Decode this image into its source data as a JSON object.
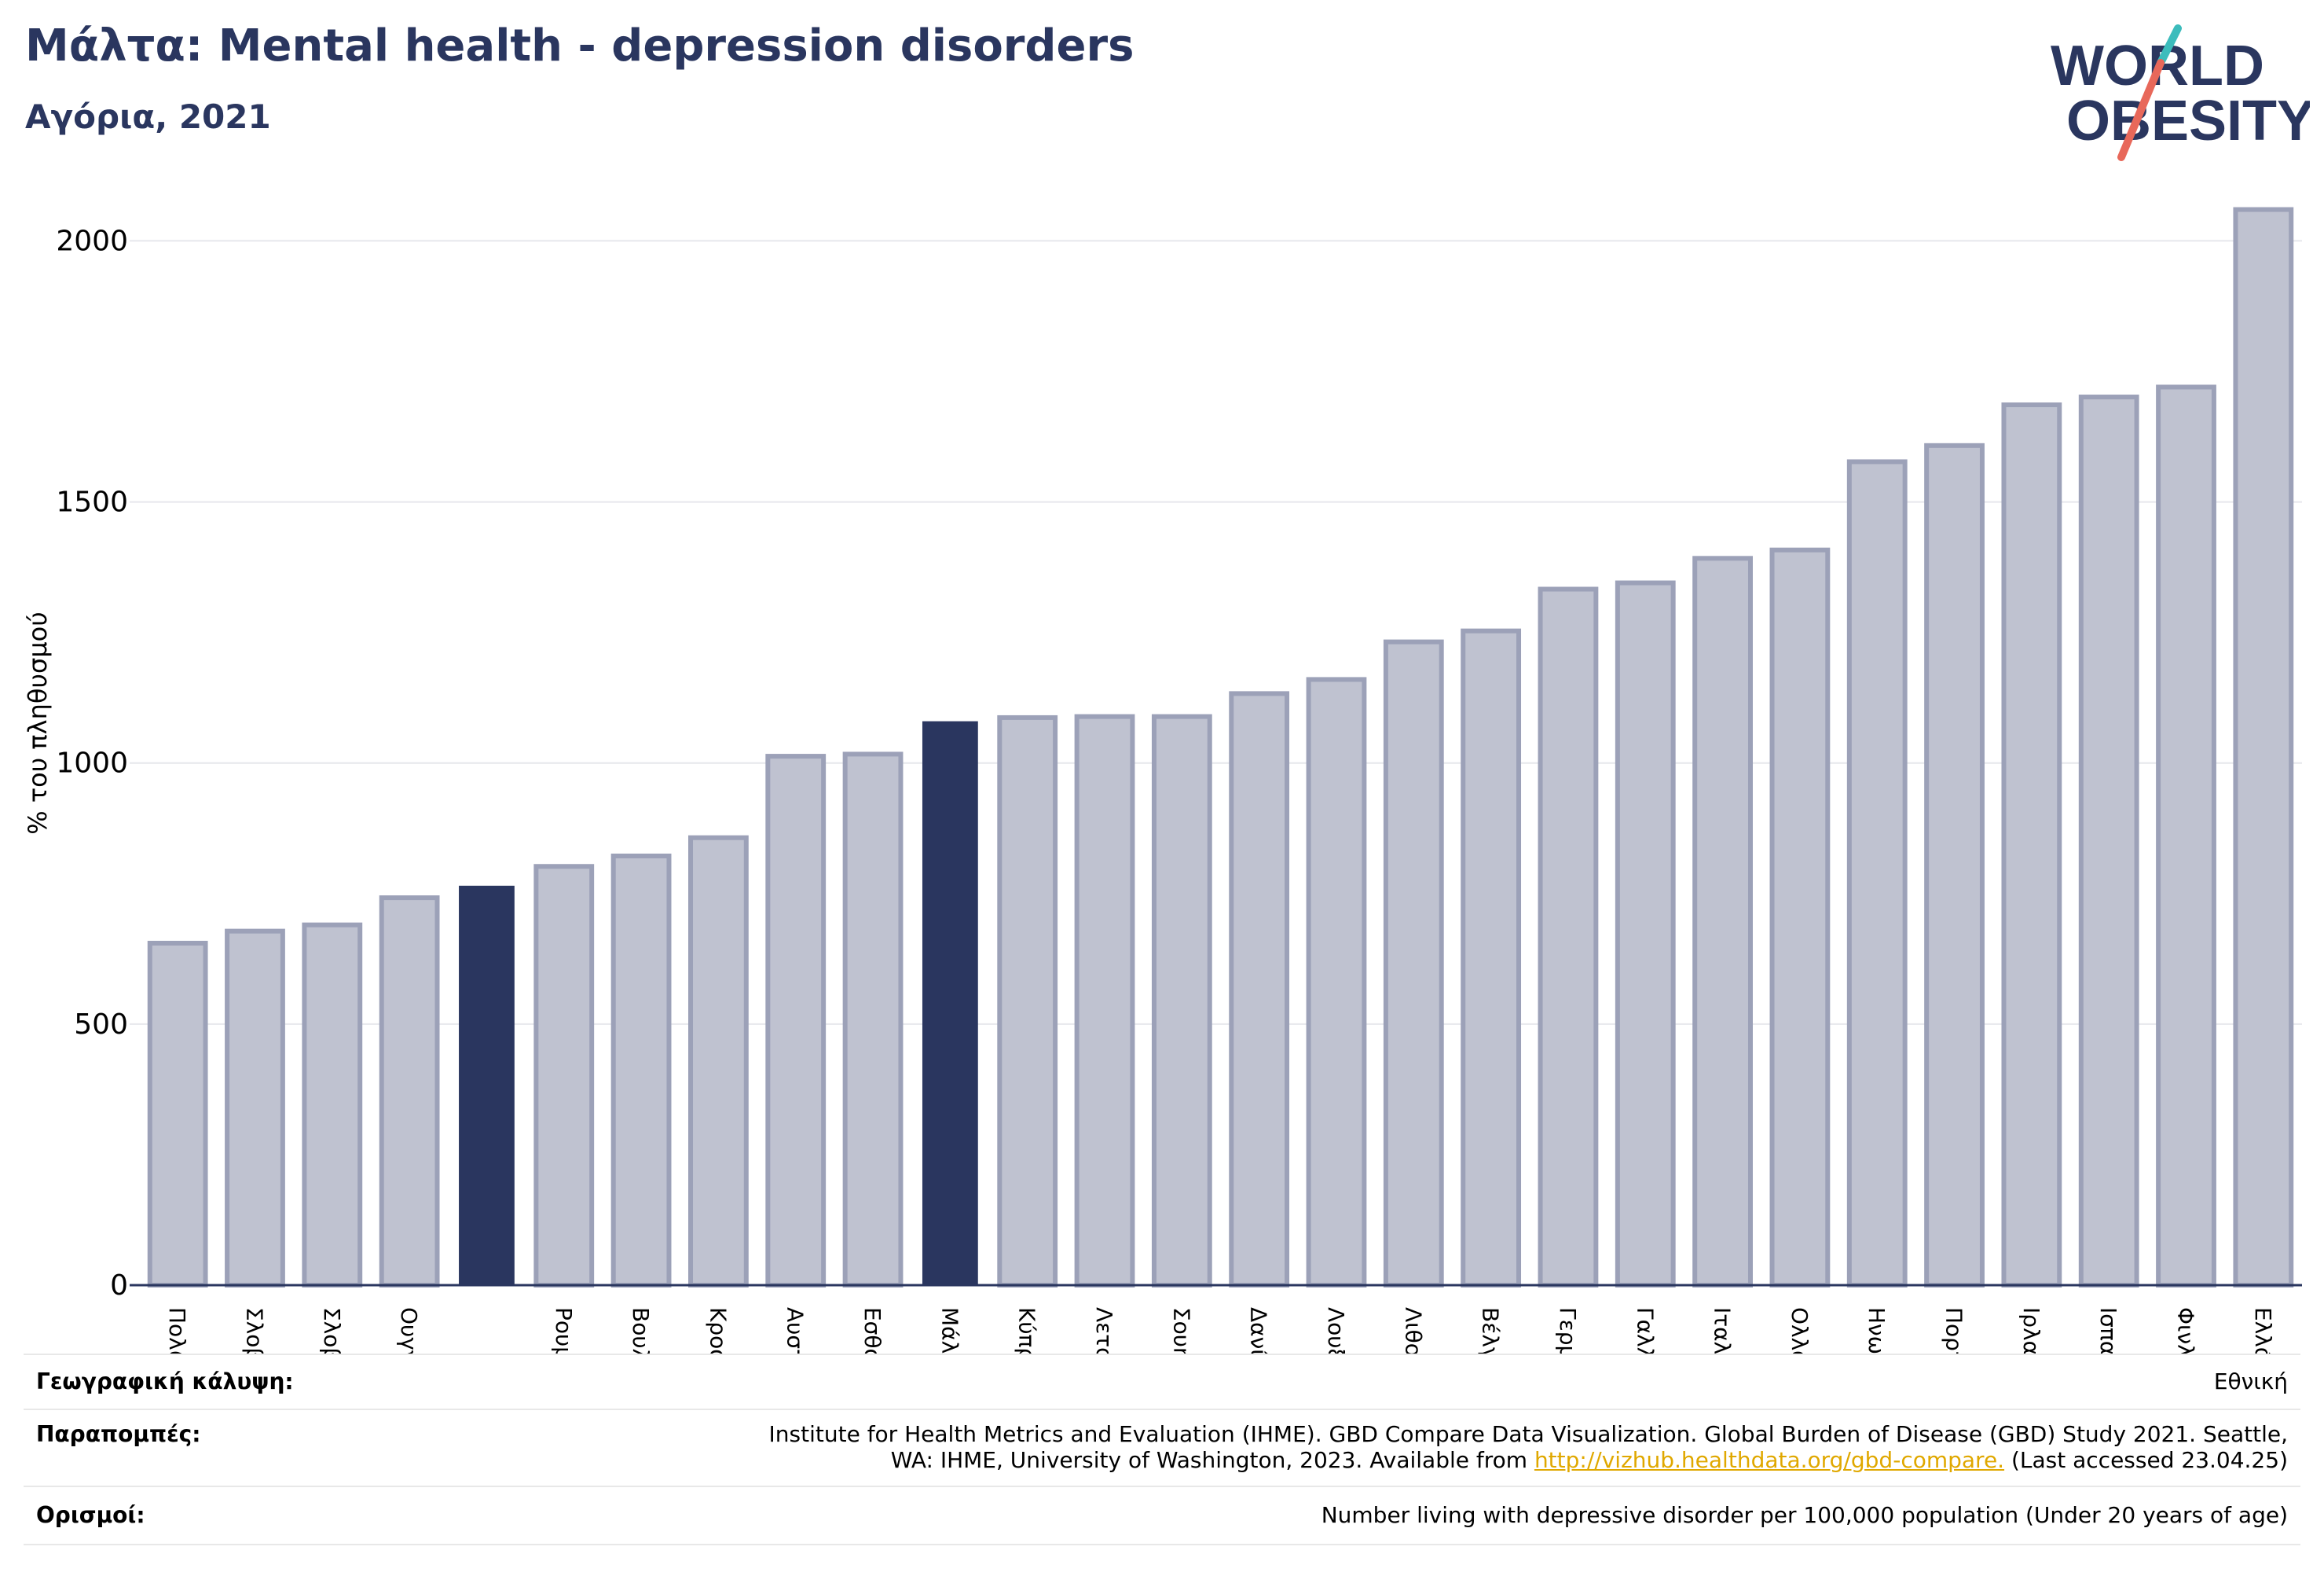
{
  "header": {
    "title": "Μάλτα: Mental health - depression disorders",
    "subtitle": "Αγόρια, 2021"
  },
  "logo": {
    "line1": "WORLD",
    "line2": "OBESITY",
    "accent_teal": "#3cbcbc",
    "accent_coral": "#e8685a"
  },
  "colors": {
    "bar": "#bfc2d0",
    "bar_border": "#9ca1b8",
    "highlight": "#2a365f",
    "grid": "#e6e7ec"
  },
  "chart_data": {
    "type": "bar",
    "ylabel": "% του πληθυσμού",
    "ylim": [
      0,
      2100
    ],
    "yticks": [
      0,
      500,
      1000,
      1500,
      2000
    ],
    "grid": true,
    "categories": [
      "Πολωνία",
      "Σλοβενία",
      "Σλοβακία",
      "Ουγγαρία",
      "",
      "Ρουμανία",
      "Βουλγαρία",
      "Κροατία",
      "Αυστρία",
      "Εσθονία",
      "Μάλτα",
      "Κύπρος",
      "Λετονία",
      "Σουηδία",
      "Δανία",
      "Λουξεμβούργο",
      "Λιθουανία",
      "Βέλγιο",
      "Γερμανία",
      "Γαλλία",
      "Ιταλία",
      "Ολλανδία",
      "Ηνωμένο Βασίλειο",
      "Πορτογαλία",
      "Ιρλανδία",
      "Ισπανία",
      "Φινλανδία",
      "Ελλάδα"
    ],
    "values": [
      655,
      678,
      690,
      742,
      765,
      802,
      822,
      857,
      1013,
      1017,
      1080,
      1087,
      1089,
      1089,
      1133,
      1160,
      1232,
      1253,
      1333,
      1345,
      1392,
      1408,
      1577,
      1608,
      1686,
      1701,
      1720,
      2060
    ],
    "highlighted": [
      4,
      10
    ]
  },
  "info": {
    "coverage_label": "Γεωγραφική κάλυψη:",
    "coverage_value": "Εθνική",
    "refs_label": "Παραπομπές:",
    "refs_line1": "Institute for Health Metrics and Evaluation (IHME). GBD Compare Data Visualization. Global Burden of Disease (GBD) Study 2021. Seattle,",
    "refs_line2_pre": "WA: IHME, University of Washington, 2023. Available from ",
    "refs_link": "http://vizhub.healthdata.org/gbd-compare.",
    "refs_line2_post": " (Last accessed 23.04.25)",
    "defs_label": "Ορισμοί:",
    "defs_value": "Number living with depressive disorder per 100,000 population (Under 20 years of age)"
  }
}
